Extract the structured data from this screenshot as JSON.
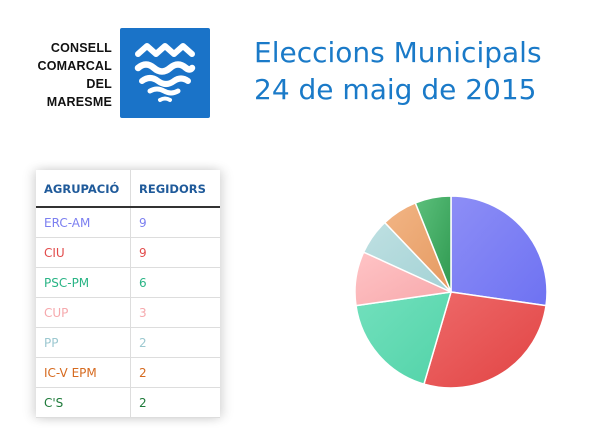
{
  "header": {
    "org_lines": [
      "CONSELL",
      "COMARCAL",
      "DEL",
      "MARESME"
    ],
    "title_line1": "Eleccions Municipals",
    "title_line2": "24 de maig de 2015",
    "logo_icon": "maresme-waves-icon",
    "logo_color": "#1a73c8",
    "title_color": "#1a7ac8"
  },
  "table": {
    "headers": [
      "AGRUPACIÓ",
      "REGIDORS"
    ],
    "rows": [
      {
        "party": "ERC-AM",
        "seats": "9",
        "color": "#7b7ff0"
      },
      {
        "party": "CIU",
        "seats": "9",
        "color": "#e24b4b"
      },
      {
        "party": "PSC-PM",
        "seats": "6",
        "color": "#29b485"
      },
      {
        "party": "CUP",
        "seats": "3",
        "color": "#f6a9ad"
      },
      {
        "party": "PP",
        "seats": "2",
        "color": "#9cc8d0"
      },
      {
        "party": "IC-V EPM",
        "seats": "2",
        "color": "#d66a1f"
      },
      {
        "party": "C'S",
        "seats": "2",
        "color": "#1e7a3a"
      }
    ]
  },
  "chart_data": {
    "type": "pie",
    "title": "",
    "categories": [
      "ERC-AM",
      "CIU",
      "PSC-PM",
      "CUP",
      "PP",
      "IC-V EPM",
      "C'S"
    ],
    "values": [
      9,
      9,
      6,
      3,
      2,
      2,
      2
    ],
    "colors": [
      [
        "#8d8ef6",
        "#6e72f2"
      ],
      [
        "#ee6a6a",
        "#e14343"
      ],
      [
        "#72e0bd",
        "#52d3a8"
      ],
      [
        "#ffc4c6",
        "#f7a8ab"
      ],
      [
        "#bfe0e2",
        "#a3d2d5"
      ],
      [
        "#f2b585",
        "#e59a61"
      ],
      [
        "#5cc07c",
        "#2f9950"
      ]
    ],
    "legend": false
  }
}
